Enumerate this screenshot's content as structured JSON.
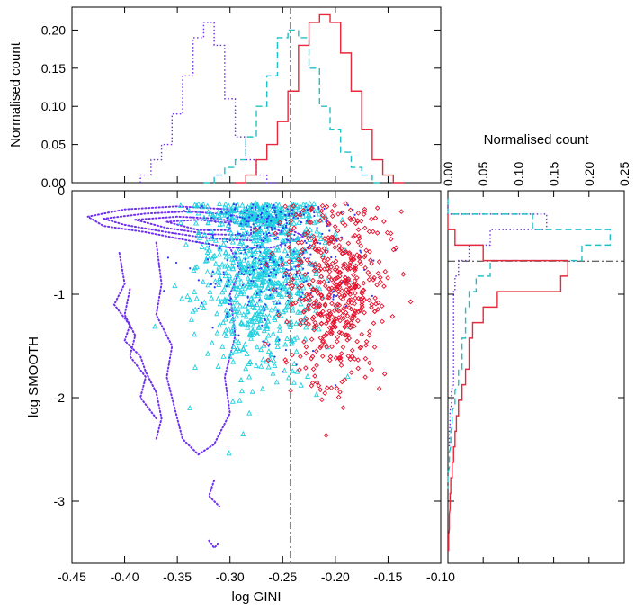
{
  "chart_data": [
    {
      "panel": "top-histogram",
      "type": "line",
      "xlabel": "",
      "ylabel": "Normalised count",
      "xlim": [
        -0.45,
        -0.1
      ],
      "ylim": [
        0.0,
        0.23
      ],
      "x_ticks": [],
      "y_ticks": [
        0.0,
        0.05,
        0.1,
        0.15,
        0.2
      ],
      "y_tick_labels": [
        "0.00",
        "0.05",
        "0.10",
        "0.15",
        "0.20"
      ],
      "reference_x": -0.243,
      "series": [
        {
          "name": "purple dotted",
          "style": "dotted",
          "color": "#7030f0",
          "bins_x": [
            -0.38,
            -0.37,
            -0.36,
            -0.35,
            -0.34,
            -0.33,
            -0.32,
            -0.31,
            -0.3,
            -0.29,
            -0.28,
            -0.27,
            -0.26
          ],
          "values": [
            0.01,
            0.03,
            0.05,
            0.09,
            0.14,
            0.19,
            0.21,
            0.18,
            0.11,
            0.06,
            0.03,
            0.01,
            0.0
          ]
        },
        {
          "name": "cyan dashed",
          "style": "dashed",
          "color": "#20c0c8",
          "bins_x": [
            -0.32,
            -0.31,
            -0.3,
            -0.29,
            -0.28,
            -0.27,
            -0.26,
            -0.25,
            -0.24,
            -0.23,
            -0.22,
            -0.21,
            -0.2,
            -0.19,
            -0.18,
            -0.17,
            -0.16
          ],
          "values": [
            0.0,
            0.01,
            0.02,
            0.03,
            0.06,
            0.1,
            0.14,
            0.19,
            0.2,
            0.19,
            0.15,
            0.1,
            0.07,
            0.04,
            0.02,
            0.01,
            0.0
          ]
        },
        {
          "name": "red solid",
          "style": "solid",
          "color": "#e8283c",
          "bins_x": [
            -0.29,
            -0.28,
            -0.27,
            -0.26,
            -0.25,
            -0.24,
            -0.23,
            -0.22,
            -0.21,
            -0.2,
            -0.19,
            -0.18,
            -0.17,
            -0.16,
            -0.15,
            -0.14
          ],
          "values": [
            0.0,
            0.01,
            0.03,
            0.05,
            0.08,
            0.12,
            0.18,
            0.21,
            0.22,
            0.21,
            0.17,
            0.12,
            0.07,
            0.03,
            0.01,
            0.0
          ]
        }
      ]
    },
    {
      "panel": "main-scatter",
      "type": "scatter",
      "xlabel": "log GINI",
      "ylabel": "log SMOOTH",
      "xlim": [
        -0.45,
        -0.1
      ],
      "ylim": [
        -3.6,
        0.0
      ],
      "x_ticks": [
        -0.45,
        -0.4,
        -0.35,
        -0.3,
        -0.25,
        -0.2,
        -0.15,
        -0.1
      ],
      "x_tick_labels": [
        "-0.45",
        "-0.40",
        "-0.35",
        "-0.30",
        "-0.25",
        "-0.20",
        "-0.15",
        "-0.10"
      ],
      "y_ticks": [
        0,
        -1,
        -2,
        -3
      ],
      "y_tick_labels": [
        "0",
        "-1",
        "-2",
        "-3"
      ],
      "reference_x": -0.243,
      "reference_y": -0.68,
      "series": [
        {
          "name": "purple contours",
          "style": "dotted",
          "color": "#7030f0",
          "contours": [
            [
              [
                -0.435,
                -0.25
              ],
              [
                -0.4,
                -0.18
              ],
              [
                -0.35,
                -0.15
              ],
              [
                -0.3,
                -0.18
              ],
              [
                -0.27,
                -0.26
              ],
              [
                -0.25,
                -0.34
              ],
              [
                -0.23,
                -0.44
              ],
              [
                -0.26,
                -0.55
              ],
              [
                -0.3,
                -0.55
              ],
              [
                -0.34,
                -0.48
              ],
              [
                -0.38,
                -0.4
              ],
              [
                -0.42,
                -0.34
              ],
              [
                -0.435,
                -0.25
              ]
            ],
            [
              [
                -0.42,
                -0.27
              ],
              [
                -0.38,
                -0.22
              ],
              [
                -0.34,
                -0.2
              ],
              [
                -0.3,
                -0.23
              ],
              [
                -0.27,
                -0.31
              ],
              [
                -0.25,
                -0.4
              ],
              [
                -0.28,
                -0.48
              ],
              [
                -0.32,
                -0.46
              ],
              [
                -0.36,
                -0.4
              ],
              [
                -0.4,
                -0.33
              ],
              [
                -0.42,
                -0.27
              ]
            ],
            [
              [
                -0.39,
                -0.28
              ],
              [
                -0.35,
                -0.25
              ],
              [
                -0.31,
                -0.27
              ],
              [
                -0.28,
                -0.35
              ],
              [
                -0.28,
                -0.43
              ],
              [
                -0.32,
                -0.42
              ],
              [
                -0.36,
                -0.36
              ],
              [
                -0.39,
                -0.28
              ]
            ],
            [
              [
                -0.36,
                -0.3
              ],
              [
                -0.33,
                -0.28
              ],
              [
                -0.3,
                -0.31
              ],
              [
                -0.3,
                -0.38
              ],
              [
                -0.33,
                -0.38
              ],
              [
                -0.36,
                -0.3
              ]
            ],
            [
              [
                -0.37,
                -0.5
              ],
              [
                -0.365,
                -0.9
              ],
              [
                -0.37,
                -1.2
              ],
              [
                -0.355,
                -1.5
              ],
              [
                -0.36,
                -1.8
              ],
              [
                -0.35,
                -2.2
              ],
              [
                -0.345,
                -2.4
              ],
              [
                -0.33,
                -2.55
              ],
              [
                -0.315,
                -2.45
              ],
              [
                -0.3,
                -2.15
              ],
              [
                -0.305,
                -1.8
              ],
              [
                -0.295,
                -1.4
              ],
              [
                -0.3,
                -1.0
              ],
              [
                -0.29,
                -0.75
              ],
              [
                -0.3,
                -0.55
              ]
            ],
            [
              [
                -0.405,
                -0.6
              ],
              [
                -0.4,
                -0.9
              ],
              [
                -0.41,
                -1.1
              ],
              [
                -0.395,
                -1.3
              ],
              [
                -0.4,
                -1.45
              ],
              [
                -0.385,
                -1.6
              ],
              [
                -0.38,
                -1.75
              ],
              [
                -0.37,
                -1.95
              ],
              [
                -0.365,
                -2.2
              ],
              [
                -0.37,
                -2.4
              ]
            ],
            [
              [
                -0.395,
                -0.95
              ],
              [
                -0.4,
                -1.2
              ],
              [
                -0.39,
                -1.4
              ],
              [
                -0.395,
                -1.6
              ],
              [
                -0.38,
                -1.8
              ],
              [
                -0.385,
                -2.0
              ],
              [
                -0.37,
                -2.2
              ]
            ],
            [
              [
                -0.315,
                -2.8
              ],
              [
                -0.32,
                -2.95
              ],
              [
                -0.31,
                -3.05
              ]
            ],
            [
              [
                -0.32,
                -3.38
              ],
              [
                -0.315,
                -3.45
              ],
              [
                -0.31,
                -3.4
              ]
            ]
          ]
        },
        {
          "name": "cyan triangles",
          "style": "points",
          "color": "#20d0e0",
          "center_x": -0.27,
          "spread_x": 0.03,
          "center_y": -0.7,
          "spread_y": 0.55,
          "count": 900
        },
        {
          "name": "blue points",
          "style": "points",
          "color": "#2a3cf0",
          "center_x": -0.26,
          "spread_x": 0.035,
          "center_y": -0.55,
          "spread_y": 0.4,
          "count": 350
        },
        {
          "name": "red diamonds",
          "style": "points",
          "color": "#e8102c",
          "center_x": -0.2,
          "spread_x": 0.025,
          "center_y": -0.95,
          "spread_y": 0.45,
          "count": 500
        }
      ]
    },
    {
      "panel": "right-histogram",
      "type": "line",
      "xlabel": "Normalised count",
      "ylabel": "",
      "xlim": [
        0.0,
        0.25
      ],
      "ylim": [
        -3.6,
        0.0
      ],
      "x_ticks": [
        0.0,
        0.05,
        0.1,
        0.15,
        0.2,
        0.25
      ],
      "x_tick_labels": [
        "0.00",
        "0.05",
        "0.10",
        "0.15",
        "0.20",
        "0.25"
      ],
      "reference_y": -0.68,
      "series": [
        {
          "name": "purple dotted",
          "style": "dotted",
          "color": "#7030f0",
          "bins_y": [
            -0.15,
            -0.3,
            -0.45,
            -0.6,
            -0.75,
            -0.9,
            -1.05,
            -1.2,
            -1.35,
            -1.5,
            -1.65,
            -1.8,
            -2.0,
            -2.2,
            -2.4
          ],
          "values": [
            0.0,
            0.14,
            0.06,
            0.03,
            0.015,
            0.01,
            0.008,
            0.008,
            0.008,
            0.008,
            0.008,
            0.008,
            0.005,
            0.003,
            0.002
          ]
        },
        {
          "name": "cyan dashed",
          "style": "dashed",
          "color": "#20c0c8",
          "bins_y": [
            -0.15,
            -0.3,
            -0.45,
            -0.6,
            -0.75,
            -0.9,
            -1.05,
            -1.2,
            -1.35,
            -1.5,
            -1.65,
            -1.8,
            -2.0,
            -2.2,
            -2.4,
            -2.6,
            -2.8
          ],
          "values": [
            0.0,
            0.12,
            0.23,
            0.19,
            0.06,
            0.04,
            0.03,
            0.025,
            0.025,
            0.02,
            0.02,
            0.015,
            0.01,
            0.006,
            0.004,
            0.002,
            0.0
          ]
        },
        {
          "name": "red solid",
          "style": "solid",
          "color": "#e8283c",
          "bins_y": [
            -0.3,
            -0.45,
            -0.6,
            -0.75,
            -0.9,
            -1.05,
            -1.2,
            -1.35,
            -1.5,
            -1.65,
            -1.8,
            -1.95,
            -2.1,
            -2.25,
            -2.4,
            -2.55,
            -2.7,
            -2.85,
            -3.0,
            -3.2,
            -3.4
          ],
          "values": [
            0.0,
            0.01,
            0.05,
            0.17,
            0.16,
            0.07,
            0.05,
            0.035,
            0.03,
            0.03,
            0.025,
            0.02,
            0.015,
            0.012,
            0.01,
            0.008,
            0.006,
            0.004,
            0.003,
            0.002,
            0.001
          ]
        }
      ]
    }
  ]
}
